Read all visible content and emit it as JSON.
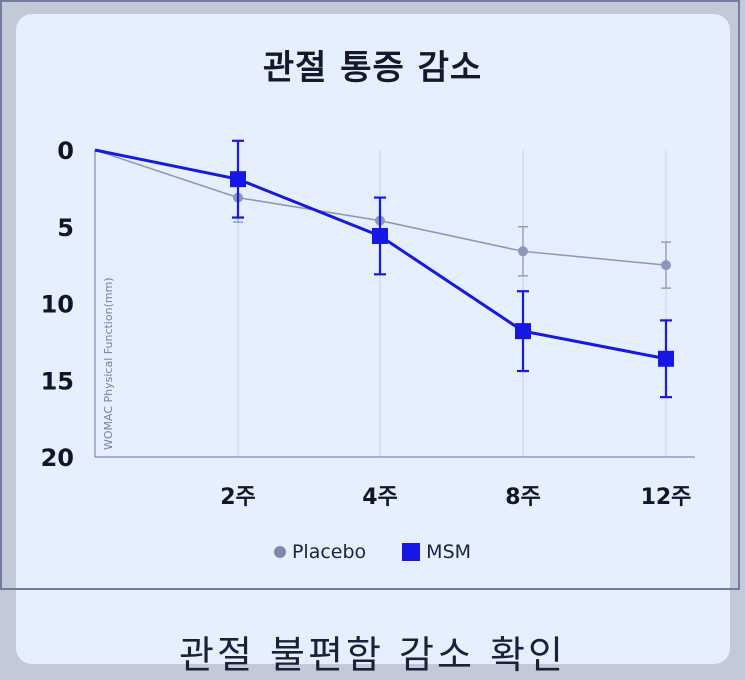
{
  "caption": "관절 불편함 감소 확인",
  "chart_data": {
    "type": "line",
    "title": "관절 통증 감소",
    "ylabel": "WOMAC Physical Function(mm)",
    "xlabel": "",
    "categories": [
      "",
      "2주",
      "4주",
      "8주",
      "12주"
    ],
    "yticks": [
      "0",
      "5",
      "10",
      "15",
      "20"
    ],
    "ylim": [
      0,
      20
    ],
    "y_inverted": true,
    "grid": "vertical",
    "legend_position": "bottom",
    "series": [
      {
        "name": "Placebo",
        "color": "#8d97b7",
        "marker": "circle",
        "values": [
          0,
          3.1,
          4.6,
          6.6,
          7.5
        ],
        "error": [
          0,
          1.6,
          0,
          1.6,
          1.5
        ]
      },
      {
        "name": "MSM",
        "color": "#1717e6",
        "marker": "square",
        "values": [
          0,
          1.9,
          5.6,
          11.8,
          13.6
        ],
        "error": [
          0,
          2.5,
          2.5,
          2.6,
          2.5
        ]
      }
    ]
  }
}
